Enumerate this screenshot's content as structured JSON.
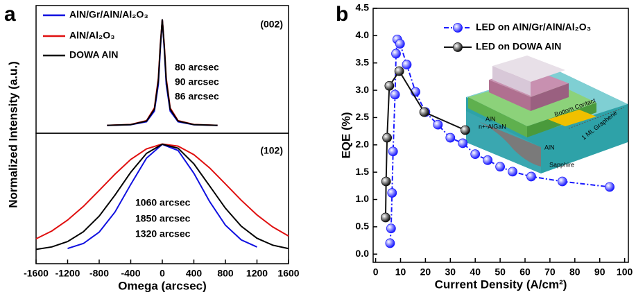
{
  "chart_data": [
    {
      "type": "line",
      "panel_label": "a",
      "subplot_label": "(002)",
      "y_label": "Normalized Intensity (a.u.)",
      "xlim": [
        -1600,
        1600
      ],
      "ylim": [
        -0.07,
        1.13
      ],
      "x": [
        -700,
        -400,
        -200,
        -100,
        -50,
        -25,
        0,
        25,
        50,
        100,
        200,
        400,
        700
      ],
      "series": [
        {
          "name": "AlN/Gr/AlN/Al₂O₃",
          "color": "#1010e0",
          "values": [
            0.003,
            0.0099,
            0.038,
            0.138,
            0.39,
            0.719,
            1,
            0.719,
            0.39,
            0.138,
            0.038,
            0.0099,
            0.003
          ]
        },
        {
          "name": "AlN/Al₂O₃",
          "color": "#e01010",
          "values": [
            0.004,
            0.0125,
            0.048,
            0.168,
            0.447,
            0.764,
            1,
            0.764,
            0.447,
            0.168,
            0.048,
            0.0125,
            0.004
          ]
        },
        {
          "name": "DOWA AlN",
          "color": "#000000",
          "values": [
            0.004,
            0.011,
            0.044,
            0.156,
            0.425,
            0.747,
            1,
            0.747,
            0.425,
            0.156,
            0.044,
            0.011,
            0.004
          ]
        }
      ],
      "annotations": [
        {
          "text": "80 arcsec",
          "color": "#1010e0"
        },
        {
          "text": "90 arcsec",
          "color": "#e01010"
        },
        {
          "text": "86 arcsec",
          "color": "#000000"
        }
      ]
    },
    {
      "type": "line",
      "subplot_label": "(102)",
      "x_label": "Omega (arcsec)",
      "xlim": [
        -1600,
        1600
      ],
      "ylim": [
        -0.12,
        1.1
      ],
      "xticks": [
        -1600,
        -1200,
        -800,
        -400,
        0,
        400,
        800,
        1200,
        1600
      ],
      "x": [
        -1600,
        -1400,
        -1200,
        -1000,
        -800,
        -600,
        -400,
        -200,
        0,
        200,
        400,
        600,
        800,
        1000,
        1200,
        1400,
        1600
      ],
      "series": [
        {
          "color": "#1010e0",
          "values": [
            null,
            null,
            0.0225,
            0.069,
            0.175,
            0.363,
            0.621,
            0.867,
            0.996,
            0.939,
            0.726,
            0.461,
            0.24,
            0.103,
            0.036,
            null,
            null
          ]
        },
        {
          "color": "#e01010",
          "values": [
            0.113,
            0.186,
            0.288,
            0.416,
            0.565,
            0.717,
            0.855,
            0.954,
            0.999,
            0.979,
            0.9,
            0.776,
            0.626,
            0.474,
            0.336,
            0.224,
            0.139
          ]
        },
        {
          "color": "#000000",
          "values": [
            0.014,
            0.037,
            0.087,
            0.179,
            0.325,
            0.521,
            0.735,
            0.912,
            0.997,
            0.96,
            0.814,
            0.607,
            0.399,
            0.231,
            0.118,
            0.053,
            0.021
          ]
        }
      ],
      "annotations": [
        {
          "text": "1060 arcsec",
          "color": "#1010e0"
        },
        {
          "text": "1850 arcsec",
          "color": "#e01010"
        },
        {
          "text": "1320 arcsec",
          "color": "#000000"
        }
      ]
    },
    {
      "type": "scatter-line",
      "panel_label": "b",
      "x_label": "Current Density (A/cm²)",
      "y_label": "EQE (%)",
      "xlim": [
        -1,
        101.5
      ],
      "ylim": [
        -0.15,
        4.5
      ],
      "xticks": [
        0,
        10,
        20,
        30,
        40,
        50,
        60,
        70,
        80,
        90,
        100
      ],
      "yticks": [
        {
          "value": 0,
          "label": "0.0"
        },
        0.5,
        {
          "value": 1,
          "label": "1.0"
        },
        1.5,
        {
          "value": 2,
          "label": "2.0"
        },
        2.5,
        {
          "value": 3,
          "label": "3.0"
        },
        3.5,
        {
          "value": 4,
          "label": "4.0"
        },
        4.5
      ],
      "markers": true,
      "series": [
        {
          "name": "LED on AlN/Gr/AlN/Al₂O₃",
          "color": "#1a1aff",
          "linestyle": "dashdot",
          "x": [
            5.8,
            6.2,
            6.6,
            7,
            7.8,
            8.2,
            8.7,
            9.8,
            12.5,
            16,
            20,
            25,
            30,
            35,
            40,
            45,
            50,
            55,
            62.5,
            75,
            94
          ],
          "values": [
            0.2,
            0.47,
            1.12,
            1.88,
            2.92,
            3.67,
            3.93,
            3.85,
            3.47,
            2.97,
            2.6,
            2.37,
            2.13,
            2.03,
            1.83,
            1.72,
            1.6,
            1.51,
            1.42,
            1.33,
            1.23
          ]
        },
        {
          "name": "LED on DOWA AIN",
          "color": "#111111",
          "linestyle": "solid",
          "x": [
            4,
            4.2,
            4.6,
            5.5,
            9.5,
            19.5,
            36
          ],
          "values": [
            0.67,
            1.33,
            2.13,
            3.08,
            3.35,
            2.6,
            2.27
          ]
        }
      ],
      "inset_labels": [
        "n+-AlGaN",
        "Bottom Contact",
        "AlN",
        "AlN",
        "Sapphire",
        "1 ML Graphene"
      ]
    }
  ]
}
